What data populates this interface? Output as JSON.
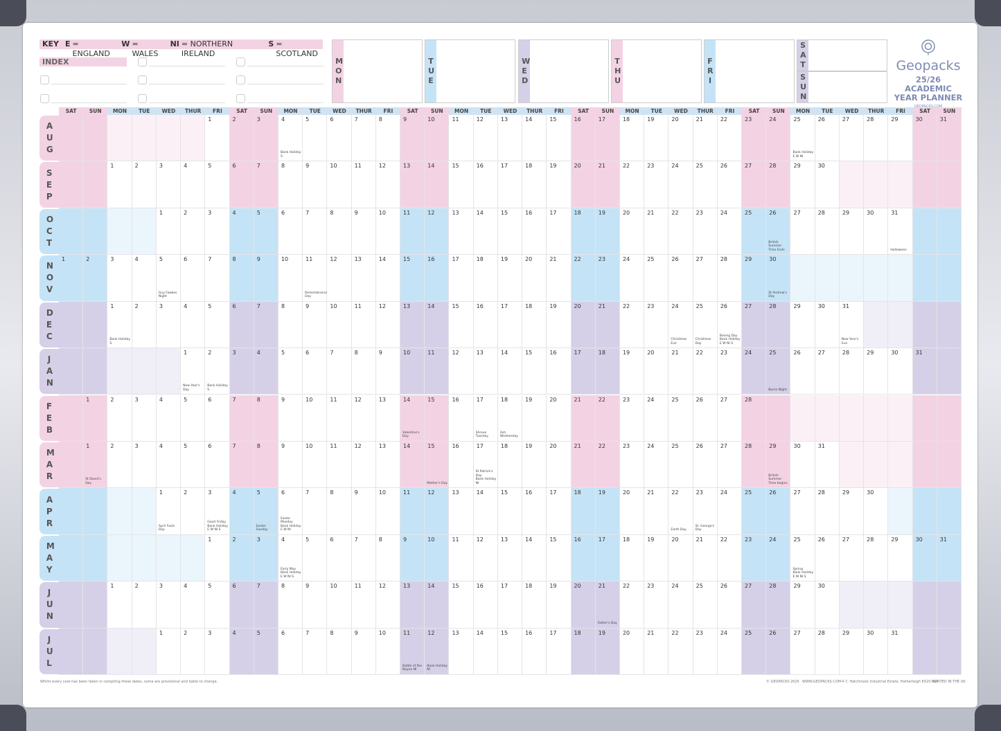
{
  "key": {
    "label": "KEY",
    "items": [
      {
        "code": "E",
        "name": "= ENGLAND"
      },
      {
        "code": "W",
        "name": "= WALES"
      },
      {
        "code": "NI",
        "name": "= NORTHERN IRELAND"
      },
      {
        "code": "S",
        "name": "= SCOTLAND"
      }
    ]
  },
  "index": {
    "title": "INDEX"
  },
  "week_boxes": [
    {
      "label": "MON",
      "color": "#f3d3e3"
    },
    {
      "label": "TUE",
      "color": "#c5e3f6"
    },
    {
      "label": "WED",
      "color": "#d5d0e7"
    },
    {
      "label": "THU",
      "color": "#f3d3e3"
    },
    {
      "label": "FRI",
      "color": "#c5e3f6"
    },
    {
      "label": "SAT",
      "color": "#d5d0e7"
    },
    {
      "label": "SUN",
      "color": "#d5d0e7"
    }
  ],
  "brand": {
    "name": "Geopacks",
    "subtitle": "25/26 ACADEMIC YEAR PLANNER",
    "url": "GEOPACKS.COM"
  },
  "weekday_headers": [
    "SAT",
    "SUN",
    "MON",
    "TUE",
    "WED",
    "THUR",
    "FRI",
    "SAT",
    "SUN",
    "MON",
    "TUE",
    "WED",
    "THUR",
    "FRI",
    "SAT",
    "SUN",
    "MON",
    "TUE",
    "WED",
    "THUR",
    "FRI",
    "SAT",
    "SUN",
    "MON",
    "TUE",
    "WED",
    "THUR",
    "FRI",
    "SAT",
    "SUN",
    "MON",
    "TUE",
    "WED",
    "THUR",
    "FRI",
    "SAT",
    "SUN"
  ],
  "months": [
    {
      "name": "AUG",
      "first_day": "FRI",
      "color": "#f3d3e3",
      "days": [
        1,
        2,
        3,
        4,
        5,
        6,
        7,
        8,
        9,
        10,
        11,
        12,
        13,
        14,
        15,
        16,
        17,
        18,
        19,
        20,
        21,
        22,
        23,
        24,
        25,
        26,
        27,
        28,
        29,
        30,
        31
      ],
      "events": [
        {
          "day": 4,
          "text": "Bank Holiday\nS"
        },
        {
          "day": 25,
          "text": "Bank Holiday\nE W NI"
        }
      ]
    },
    {
      "name": "SEP",
      "first_day": "MON",
      "color": "#f3d3e3",
      "days": [
        1,
        2,
        3,
        4,
        5,
        6,
        7,
        8,
        9,
        10,
        11,
        12,
        13,
        14,
        15,
        16,
        17,
        18,
        19,
        20,
        21,
        22,
        23,
        24,
        25,
        26,
        27,
        28,
        29,
        30
      ],
      "events": []
    },
    {
      "name": "OCT",
      "first_day": "WED",
      "color": "#c5e3f6",
      "days": [
        1,
        2,
        3,
        4,
        5,
        6,
        7,
        8,
        9,
        10,
        11,
        12,
        13,
        14,
        15,
        16,
        17,
        18,
        19,
        20,
        21,
        22,
        23,
        24,
        25,
        26,
        27,
        28,
        29,
        30,
        31
      ],
      "events": [
        {
          "day": 26,
          "text": "British\nSummer\nTime Ends"
        },
        {
          "day": 31,
          "text": "Halloween"
        }
      ]
    },
    {
      "name": "NOV",
      "first_day": "SAT",
      "color": "#c5e3f6",
      "days": [
        1,
        2,
        3,
        4,
        5,
        6,
        7,
        8,
        9,
        10,
        11,
        12,
        13,
        14,
        15,
        16,
        17,
        18,
        19,
        20,
        21,
        22,
        23,
        24,
        25,
        26,
        27,
        28,
        29,
        30
      ],
      "events": [
        {
          "day": 5,
          "text": "Guy Fawkes\nNight"
        },
        {
          "day": 11,
          "text": "Remembrance\nDay"
        },
        {
          "day": 30,
          "text": "St Andrew's Day"
        }
      ]
    },
    {
      "name": "DEC",
      "first_day": "MON",
      "color": "#d5d0e7",
      "days": [
        1,
        2,
        3,
        4,
        5,
        6,
        7,
        8,
        9,
        10,
        11,
        12,
        13,
        14,
        15,
        16,
        17,
        18,
        19,
        20,
        21,
        22,
        23,
        24,
        25,
        26,
        27,
        28,
        29,
        30,
        31
      ],
      "events": [
        {
          "day": 1,
          "text": "Bank Holiday\nS"
        },
        {
          "day": 24,
          "text": "Christmas Eve"
        },
        {
          "day": 25,
          "text": "Christmas Day"
        },
        {
          "day": 26,
          "text": "Boxing Day\nBank Holiday\nE W NI S"
        },
        {
          "day": 31,
          "text": "New Year's Eve"
        }
      ]
    },
    {
      "name": "JAN",
      "first_day": "THUR",
      "color": "#d5d0e7",
      "days": [
        1,
        2,
        3,
        4,
        5,
        6,
        7,
        8,
        9,
        10,
        11,
        12,
        13,
        14,
        15,
        16,
        17,
        18,
        19,
        20,
        21,
        22,
        23,
        24,
        25,
        26,
        27,
        28,
        29,
        30,
        31
      ],
      "events": [
        {
          "day": 1,
          "text": "New Year's Day"
        },
        {
          "day": 2,
          "text": "Bank Holiday\nS"
        },
        {
          "day": 25,
          "text": "Burns Night"
        }
      ]
    },
    {
      "name": "FEB",
      "first_day": "SUN",
      "color": "#f3d3e3",
      "days": [
        1,
        2,
        3,
        4,
        5,
        6,
        7,
        8,
        9,
        10,
        11,
        12,
        13,
        14,
        15,
        16,
        17,
        18,
        19,
        20,
        21,
        22,
        23,
        24,
        25,
        26,
        27,
        28
      ],
      "events": [
        {
          "day": 14,
          "text": "Valentine's Day"
        },
        {
          "day": 17,
          "text": "Shrove Tuesday"
        },
        {
          "day": 18,
          "text": "Ash Wednesday"
        }
      ]
    },
    {
      "name": "MAR",
      "first_day": "SUN",
      "color": "#f3d3e3",
      "days": [
        1,
        2,
        3,
        4,
        5,
        6,
        7,
        8,
        9,
        10,
        11,
        12,
        13,
        14,
        15,
        16,
        17,
        18,
        19,
        20,
        21,
        22,
        23,
        24,
        25,
        26,
        27,
        28,
        29,
        30,
        31
      ],
      "events": [
        {
          "day": 1,
          "text": "St David's Day"
        },
        {
          "day": 15,
          "text": "Mother's Day"
        },
        {
          "day": 17,
          "text": "St Patrick's Day\nBank Holiday\nNI"
        },
        {
          "day": 29,
          "text": "British Summer\nTime begins"
        }
      ]
    },
    {
      "name": "APR",
      "first_day": "WED",
      "color": "#c5e3f6",
      "days": [
        1,
        2,
        3,
        4,
        5,
        6,
        7,
        8,
        9,
        10,
        11,
        12,
        13,
        14,
        15,
        16,
        17,
        18,
        19,
        20,
        21,
        22,
        23,
        24,
        25,
        26,
        27,
        28,
        29,
        30
      ],
      "events": [
        {
          "day": 1,
          "text": "April Fools Day"
        },
        {
          "day": 3,
          "text": "Good Friday\nBank Holiday\nE W NI S"
        },
        {
          "day": 5,
          "text": "Easter Sunday"
        },
        {
          "day": 6,
          "text": "Easter Monday\nBank Holiday\nE W NI"
        },
        {
          "day": 22,
          "text": "Earth Day"
        },
        {
          "day": 23,
          "text": "St. George's\nDay"
        }
      ]
    },
    {
      "name": "MAY",
      "first_day": "FRI",
      "color": "#c5e3f6",
      "days": [
        1,
        2,
        3,
        4,
        5,
        6,
        7,
        8,
        9,
        10,
        11,
        12,
        13,
        14,
        15,
        16,
        17,
        18,
        19,
        20,
        21,
        22,
        23,
        24,
        25,
        26,
        27,
        28,
        29,
        30,
        31
      ],
      "events": [
        {
          "day": 4,
          "text": "Early May\nBank Holiday\nE W NI S"
        },
        {
          "day": 25,
          "text": "Spring\nBank Holiday\nE W NI S"
        }
      ]
    },
    {
      "name": "JUN",
      "first_day": "MON",
      "color": "#d5d0e7",
      "days": [
        1,
        2,
        3,
        4,
        5,
        6,
        7,
        8,
        9,
        10,
        11,
        12,
        13,
        14,
        15,
        16,
        17,
        18,
        19,
        20,
        21,
        22,
        23,
        24,
        25,
        26,
        27,
        28,
        29,
        30
      ],
      "events": [
        {
          "day": 21,
          "text": "Father's Day"
        }
      ]
    },
    {
      "name": "JUL",
      "first_day": "WED",
      "color": "#d5d0e7",
      "days": [
        1,
        2,
        3,
        4,
        5,
        6,
        7,
        8,
        9,
        10,
        11,
        12,
        13,
        14,
        15,
        16,
        17,
        18,
        19,
        20,
        21,
        22,
        23,
        24,
        25,
        26,
        27,
        28,
        29,
        30,
        31
      ],
      "events": [
        {
          "day": 11,
          "text": "Battle of the\nBoyne NI"
        },
        {
          "day": 12,
          "text": "Bank Holiday\nNI"
        }
      ]
    }
  ],
  "footer": {
    "disclaimer": "Whilst every care has been taken in compiling these dates, some are provisional and liable to change.",
    "copyright": "© GEOPACKS 2025",
    "website": "WWW.GEOPACKS.COM",
    "address": "4-7, Hatchmoor Industrial Estate, Hatherleigh EX20 3LP",
    "printed": "PRINTED IN THE UK"
  }
}
